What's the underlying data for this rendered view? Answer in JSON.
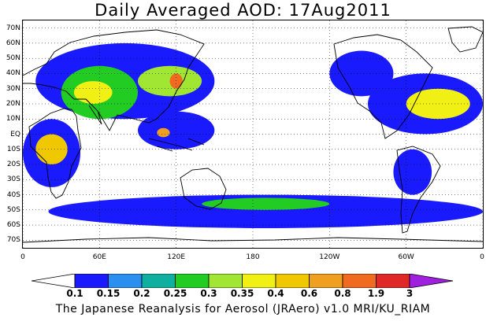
{
  "title": "Daily Averaged AOD: 17Aug2011",
  "credit": "The Japanese Reanalysis for Aerosol (JRAero) v1.0 MRI/KU_RIAM",
  "map": {
    "lat_labels": [
      "70N",
      "60N",
      "50N",
      "40N",
      "30N",
      "20N",
      "10N",
      "EQ",
      "10S",
      "20S",
      "30S",
      "40S",
      "50S",
      "60S",
      "70S"
    ],
    "lat_values": [
      70,
      60,
      50,
      40,
      30,
      20,
      10,
      0,
      -10,
      -20,
      -30,
      -40,
      -50,
      -60,
      -70
    ],
    "lon_labels": [
      "0",
      "60E",
      "120E",
      "180",
      "120W",
      "60W",
      "0"
    ],
    "lon_values": [
      0,
      60,
      120,
      180,
      240,
      300,
      360
    ],
    "lat_range": [
      -75,
      75
    ],
    "lon_range": [
      0,
      360
    ]
  },
  "colorbar": {
    "levels": [
      "0.1",
      "0.15",
      "0.2",
      "0.25",
      "0.3",
      "0.35",
      "0.4",
      "0.6",
      "0.8",
      "1.9",
      "3"
    ],
    "colors": [
      "#ffffff",
      "#1a1aff",
      "#2a8fef",
      "#10b0a0",
      "#22cc22",
      "#a0e632",
      "#f0f014",
      "#f0c800",
      "#f0a020",
      "#f06a20",
      "#e02828",
      "#a020e0"
    ]
  },
  "aod_regions": [
    {
      "level": 1,
      "lon": [
        10,
        150
      ],
      "lat": [
        10,
        60
      ]
    },
    {
      "level": 4,
      "lon": [
        30,
        90
      ],
      "lat": [
        10,
        45
      ]
    },
    {
      "level": 6,
      "lon": [
        40,
        70
      ],
      "lat": [
        20,
        35
      ]
    },
    {
      "level": 1,
      "lon": [
        0,
        45
      ],
      "lat": [
        -35,
        10
      ]
    },
    {
      "level": 7,
      "lon": [
        10,
        35
      ],
      "lat": [
        -20,
        0
      ]
    },
    {
      "level": 5,
      "lon": [
        90,
        140
      ],
      "lat": [
        25,
        45
      ]
    },
    {
      "level": 9,
      "lon": [
        115,
        125
      ],
      "lat": [
        30,
        40
      ]
    },
    {
      "level": 1,
      "lon": [
        90,
        150
      ],
      "lat": [
        -10,
        15
      ]
    },
    {
      "level": 8,
      "lon": [
        105,
        115
      ],
      "lat": [
        -2,
        4
      ]
    },
    {
      "level": 1,
      "lon": [
        270,
        360
      ],
      "lat": [
        0,
        40
      ]
    },
    {
      "level": 6,
      "lon": [
        300,
        350
      ],
      "lat": [
        10,
        30
      ]
    },
    {
      "level": 1,
      "lon": [
        240,
        290
      ],
      "lat": [
        25,
        55
      ]
    },
    {
      "level": 1,
      "lon": [
        20,
        360
      ],
      "lat": [
        -62,
        -40
      ]
    },
    {
      "level": 4,
      "lon": [
        140,
        240
      ],
      "lat": [
        -50,
        -42
      ]
    },
    {
      "level": 1,
      "lon": [
        290,
        320
      ],
      "lat": [
        -40,
        -10
      ]
    }
  ]
}
